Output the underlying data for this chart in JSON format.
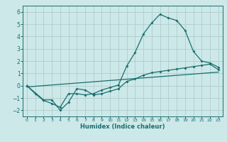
{
  "title": "",
  "xlabel": "Humidex (Indice chaleur)",
  "background_color": "#cce8e8",
  "grid_color": "#b0cccc",
  "line_color": "#1a6e6e",
  "xlim": [
    -0.5,
    23.5
  ],
  "ylim": [
    -2.5,
    6.5
  ],
  "xticks": [
    0,
    1,
    2,
    3,
    4,
    5,
    6,
    7,
    8,
    9,
    10,
    11,
    12,
    13,
    14,
    15,
    16,
    17,
    18,
    19,
    20,
    21,
    22,
    23
  ],
  "yticks": [
    -2,
    -1,
    0,
    1,
    2,
    3,
    4,
    5,
    6
  ],
  "series1_x": [
    0,
    1,
    2,
    3,
    4,
    5,
    6,
    7,
    8,
    9,
    10,
    11,
    12,
    13,
    14,
    15,
    16,
    17,
    18,
    19,
    20,
    21,
    22,
    23
  ],
  "series1_y": [
    0.0,
    -0.65,
    -1.2,
    -1.45,
    -1.75,
    -0.65,
    -0.65,
    -0.75,
    -0.65,
    -0.35,
    -0.15,
    0.05,
    1.6,
    2.7,
    4.2,
    5.1,
    5.8,
    5.5,
    5.3,
    4.5,
    2.8,
    2.0,
    1.85,
    1.5
  ],
  "series2_x": [
    0,
    2,
    3,
    4,
    5,
    6,
    7,
    8,
    9,
    10,
    11,
    12,
    13,
    14,
    15,
    16,
    17,
    18,
    19,
    20,
    21,
    22,
    23
  ],
  "series2_y": [
    0.0,
    -1.15,
    -1.15,
    -2.0,
    -1.35,
    -0.25,
    -0.35,
    -0.75,
    -0.65,
    -0.45,
    -0.25,
    0.35,
    0.55,
    0.85,
    1.05,
    1.15,
    1.25,
    1.35,
    1.45,
    1.55,
    1.65,
    1.75,
    1.3
  ],
  "series3_x": [
    0,
    23
  ],
  "series3_y": [
    -0.1,
    1.1
  ]
}
